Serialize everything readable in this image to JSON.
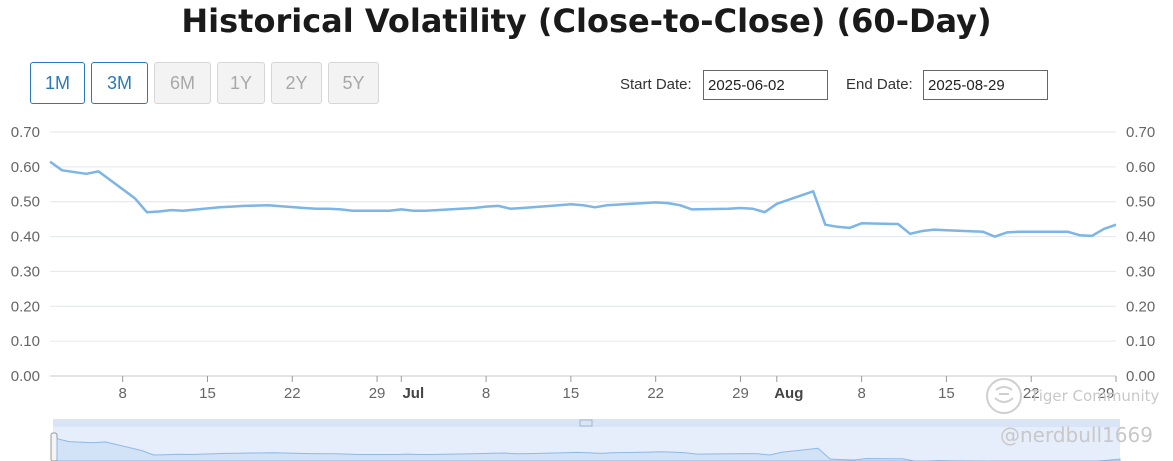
{
  "chart_data": {
    "type": "line",
    "title": "Historical Volatility (Close-to-Close) (60-Day)",
    "xlabel": "",
    "ylabel": "",
    "ylim": [
      0,
      0.7
    ],
    "yticks": [
      "0.00",
      "0.10",
      "0.20",
      "0.30",
      "0.40",
      "0.50",
      "0.60",
      "0.70"
    ],
    "x_range": [
      "2025-06-02",
      "2025-08-29"
    ],
    "xticks": [
      {
        "date": "2025-06-08",
        "label": "8",
        "bold": false
      },
      {
        "date": "2025-06-15",
        "label": "15",
        "bold": false
      },
      {
        "date": "2025-06-22",
        "label": "22",
        "bold": false
      },
      {
        "date": "2025-06-29",
        "label": "29",
        "bold": false
      },
      {
        "date": "2025-07-01",
        "label": "Jul",
        "bold": true
      },
      {
        "date": "2025-07-08",
        "label": "8",
        "bold": false
      },
      {
        "date": "2025-07-15",
        "label": "15",
        "bold": false
      },
      {
        "date": "2025-07-22",
        "label": "22",
        "bold": false
      },
      {
        "date": "2025-07-29",
        "label": "29",
        "bold": false
      },
      {
        "date": "2025-08-01",
        "label": "Aug",
        "bold": true
      },
      {
        "date": "2025-08-08",
        "label": "8",
        "bold": false
      },
      {
        "date": "2025-08-15",
        "label": "15",
        "bold": false
      },
      {
        "date": "2025-08-22",
        "label": "22",
        "bold": false
      },
      {
        "date": "2025-08-29",
        "label": "29",
        "bold": false
      }
    ],
    "grid": true,
    "series": [
      {
        "name": "",
        "color": "#7cb5e6",
        "points": [
          [
            "2025-06-02",
            0.615
          ],
          [
            "2025-06-03",
            0.59
          ],
          [
            "2025-06-05",
            0.58
          ],
          [
            "2025-06-06",
            0.587
          ],
          [
            "2025-06-09",
            0.51
          ],
          [
            "2025-06-10",
            0.47
          ],
          [
            "2025-06-11",
            0.472
          ],
          [
            "2025-06-12",
            0.476
          ],
          [
            "2025-06-13",
            0.474
          ],
          [
            "2025-06-16",
            0.484
          ],
          [
            "2025-06-17",
            0.486
          ],
          [
            "2025-06-18",
            0.488
          ],
          [
            "2025-06-20",
            0.49
          ],
          [
            "2025-06-23",
            0.482
          ],
          [
            "2025-06-24",
            0.48
          ],
          [
            "2025-06-25",
            0.48
          ],
          [
            "2025-06-26",
            0.478
          ],
          [
            "2025-06-27",
            0.474
          ],
          [
            "2025-06-30",
            0.474
          ],
          [
            "2025-07-01",
            0.478
          ],
          [
            "2025-07-02",
            0.474
          ],
          [
            "2025-07-03",
            0.474
          ],
          [
            "2025-07-07",
            0.482
          ],
          [
            "2025-07-08",
            0.486
          ],
          [
            "2025-07-09",
            0.488
          ],
          [
            "2025-07-10",
            0.48
          ],
          [
            "2025-07-11",
            0.482
          ],
          [
            "2025-07-14",
            0.49
          ],
          [
            "2025-07-15",
            0.493
          ],
          [
            "2025-07-16",
            0.49
          ],
          [
            "2025-07-17",
            0.484
          ],
          [
            "2025-07-18",
            0.49
          ],
          [
            "2025-07-21",
            0.496
          ],
          [
            "2025-07-22",
            0.498
          ],
          [
            "2025-07-23",
            0.496
          ],
          [
            "2025-07-24",
            0.49
          ],
          [
            "2025-07-25",
            0.478
          ],
          [
            "2025-07-28",
            0.48
          ],
          [
            "2025-07-29",
            0.482
          ],
          [
            "2025-07-30",
            0.48
          ],
          [
            "2025-07-31",
            0.47
          ],
          [
            "2025-08-01",
            0.494
          ],
          [
            "2025-08-04",
            0.53
          ],
          [
            "2025-08-05",
            0.434
          ],
          [
            "2025-08-06",
            0.428
          ],
          [
            "2025-08-07",
            0.425
          ],
          [
            "2025-08-08",
            0.438
          ],
          [
            "2025-08-11",
            0.436
          ],
          [
            "2025-08-12",
            0.408
          ],
          [
            "2025-08-13",
            0.416
          ],
          [
            "2025-08-14",
            0.42
          ],
          [
            "2025-08-15",
            0.418
          ],
          [
            "2025-08-18",
            0.414
          ],
          [
            "2025-08-19",
            0.4
          ],
          [
            "2025-08-20",
            0.412
          ],
          [
            "2025-08-21",
            0.414
          ],
          [
            "2025-08-22",
            0.414
          ],
          [
            "2025-08-25",
            0.414
          ],
          [
            "2025-08-26",
            0.404
          ],
          [
            "2025-08-27",
            0.402
          ],
          [
            "2025-08-28",
            0.422
          ],
          [
            "2025-08-29",
            0.434
          ]
        ]
      }
    ]
  },
  "controls": {
    "range_buttons": [
      {
        "label": "1M",
        "active": true
      },
      {
        "label": "3M",
        "active": true
      },
      {
        "label": "6M",
        "active": false
      },
      {
        "label": "1Y",
        "active": false
      },
      {
        "label": "2Y",
        "active": false
      },
      {
        "label": "5Y",
        "active": false
      }
    ],
    "start_date_label": "Start Date:",
    "start_date_value": "2025-06-02",
    "end_date_label": "End Date:",
    "end_date_value": "2025-08-29"
  },
  "watermark": {
    "brand": "Tiger Community",
    "handle": "@nerdbull1669"
  }
}
